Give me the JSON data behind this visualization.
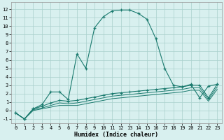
{
  "xlabel": "Humidex (Indice chaleur)",
  "xlim": [
    -0.5,
    23.5
  ],
  "ylim": [
    -1.5,
    12.8
  ],
  "yticks": [
    -1,
    0,
    1,
    2,
    3,
    4,
    5,
    6,
    7,
    8,
    9,
    10,
    11,
    12
  ],
  "xticks": [
    0,
    1,
    2,
    3,
    4,
    5,
    6,
    7,
    8,
    9,
    10,
    11,
    12,
    13,
    14,
    15,
    16,
    17,
    18,
    19,
    20,
    21,
    22,
    23
  ],
  "bg_color": "#d8f0ef",
  "grid_color": "#aacfcc",
  "line_color": "#1a7a6e",
  "line1_x": [
    0,
    1,
    2,
    3,
    4,
    5,
    6,
    7,
    8,
    9,
    10,
    11,
    12,
    13,
    14,
    15,
    16,
    17,
    18,
    19,
    20,
    21,
    22,
    23
  ],
  "line1_y": [
    -0.3,
    -1.0,
    0.2,
    0.7,
    2.2,
    2.2,
    1.3,
    6.7,
    5.0,
    9.8,
    11.1,
    11.8,
    11.9,
    11.9,
    11.5,
    10.8,
    8.5,
    5.0,
    3.0,
    2.8,
    3.1,
    1.5,
    2.9,
    3.1
  ],
  "line2_x": [
    0,
    1,
    2,
    3,
    4,
    5,
    6,
    7,
    8,
    9,
    10,
    11,
    12,
    13,
    14,
    15,
    16,
    17,
    18,
    19,
    20,
    21,
    22,
    23
  ],
  "line2_y": [
    -0.3,
    -1.0,
    0.2,
    0.5,
    0.9,
    1.2,
    1.1,
    1.2,
    1.4,
    1.6,
    1.8,
    2.0,
    2.1,
    2.2,
    2.3,
    2.4,
    2.5,
    2.6,
    2.7,
    2.8,
    3.0,
    3.0,
    1.5,
    3.1
  ],
  "line3_x": [
    0,
    1,
    2,
    3,
    4,
    5,
    6,
    7,
    8,
    9,
    10,
    11,
    12,
    13,
    14,
    15,
    16,
    17,
    18,
    19,
    20,
    21,
    22,
    23
  ],
  "line3_y": [
    -0.3,
    -1.0,
    0.1,
    0.3,
    0.6,
    0.9,
    0.8,
    0.9,
    1.1,
    1.3,
    1.5,
    1.7,
    1.8,
    1.9,
    2.0,
    2.1,
    2.2,
    2.3,
    2.4,
    2.5,
    2.7,
    2.7,
    1.3,
    2.8
  ],
  "line4_x": [
    0,
    1,
    2,
    3,
    4,
    5,
    6,
    7,
    8,
    9,
    10,
    11,
    12,
    13,
    14,
    15,
    16,
    17,
    18,
    19,
    20,
    21,
    22,
    23
  ],
  "line4_y": [
    -0.3,
    -1.0,
    0.0,
    0.2,
    0.4,
    0.6,
    0.6,
    0.6,
    0.8,
    1.0,
    1.2,
    1.4,
    1.5,
    1.6,
    1.7,
    1.8,
    1.9,
    2.0,
    2.1,
    2.2,
    2.4,
    2.4,
    1.1,
    2.5
  ]
}
